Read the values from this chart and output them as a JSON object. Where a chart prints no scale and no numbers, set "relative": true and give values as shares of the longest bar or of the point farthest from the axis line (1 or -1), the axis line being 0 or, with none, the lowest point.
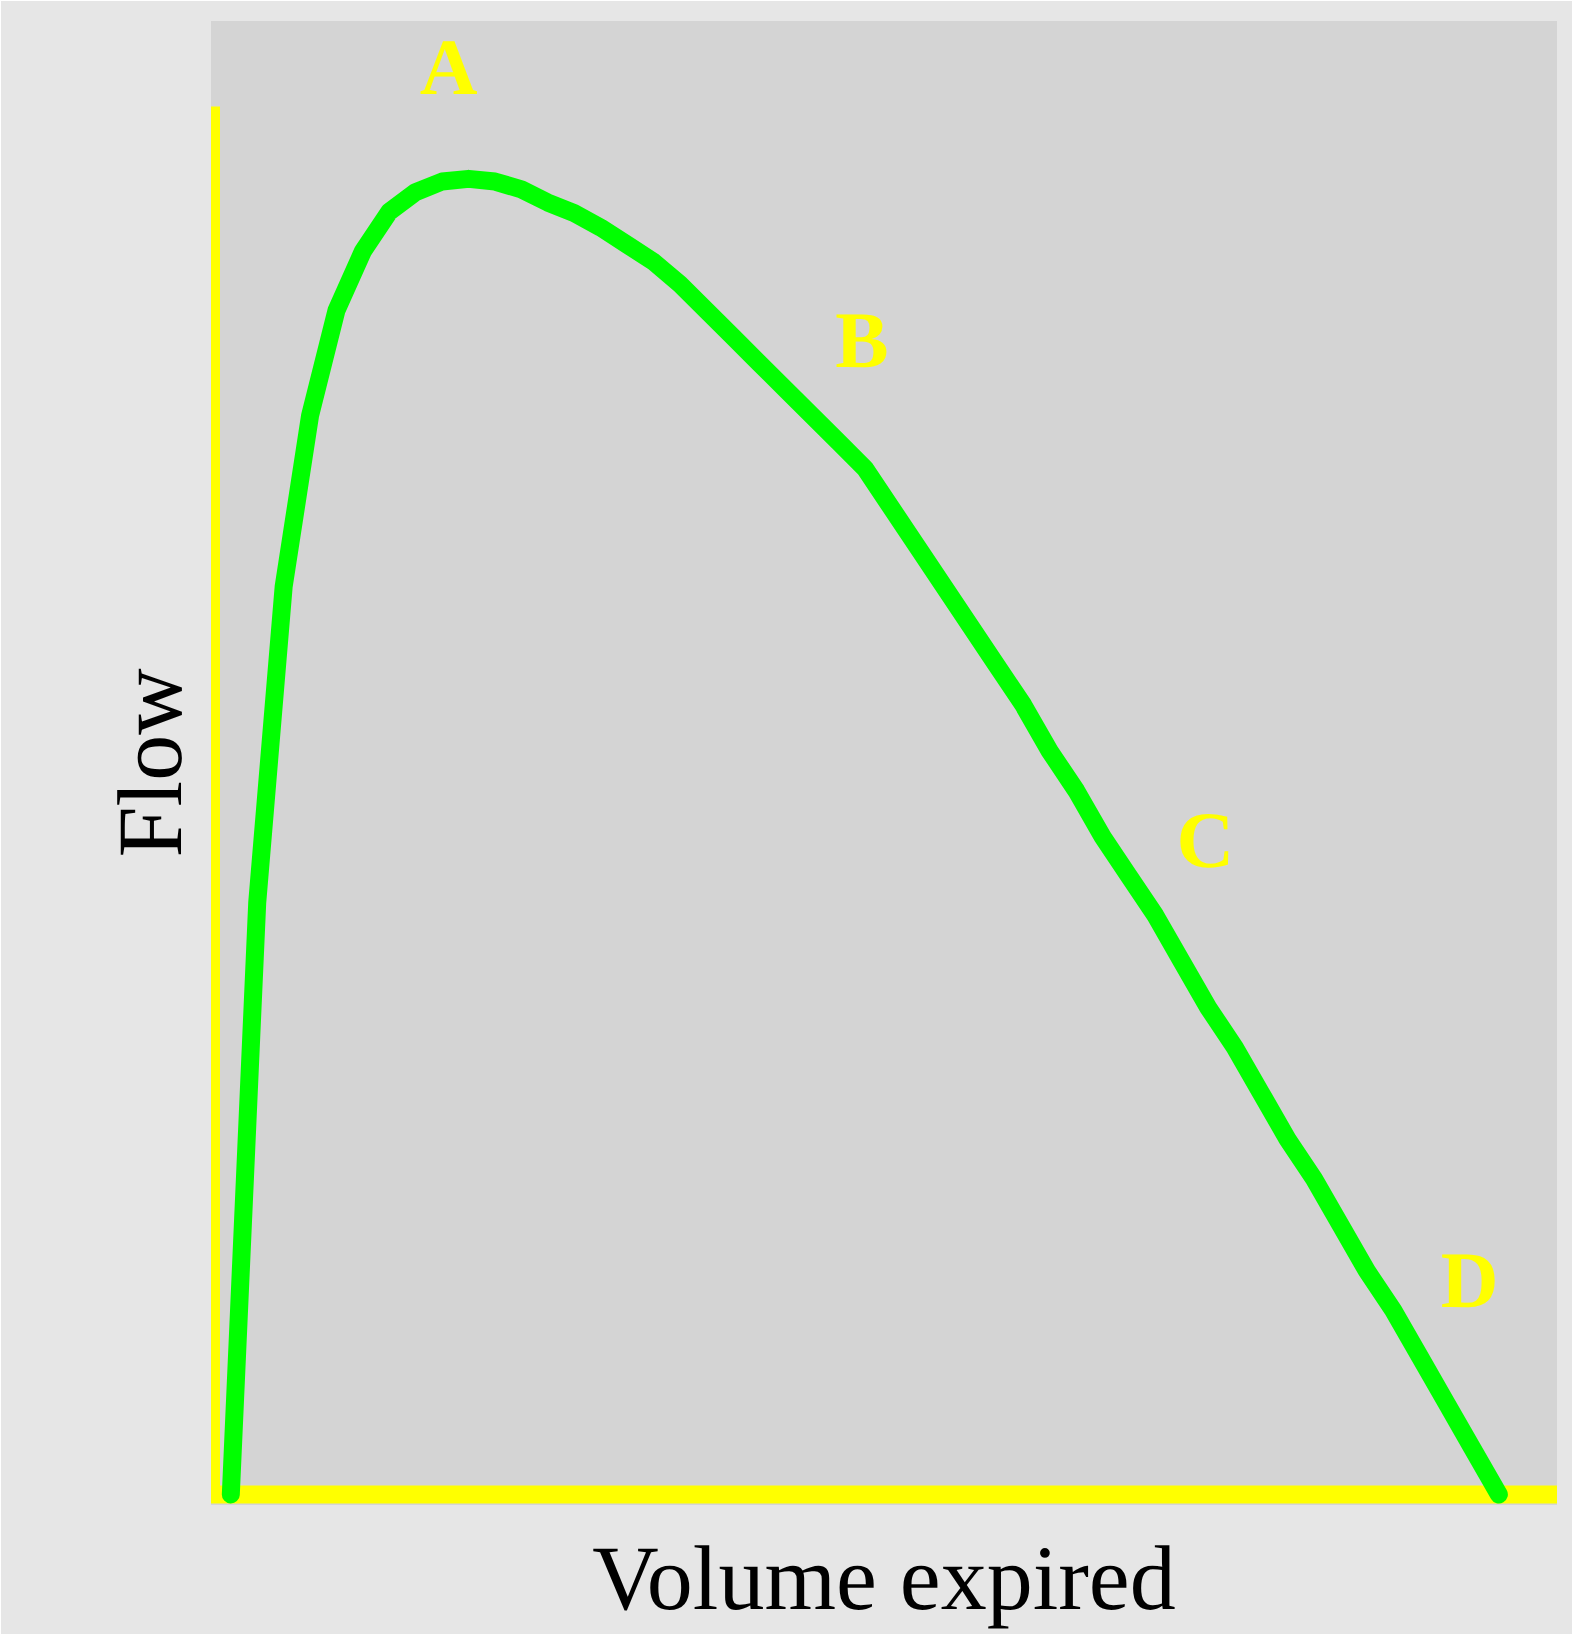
{
  "chart_data": {
    "type": "line",
    "relative": true,
    "xlabel": "Volume expired",
    "ylabel": "Flow",
    "line_style": "solid",
    "categories": [
      null,
      null,
      null,
      null,
      null,
      null,
      null,
      null,
      null,
      null,
      null,
      null,
      null,
      null,
      null,
      null,
      null,
      null,
      null,
      null,
      null,
      null,
      null,
      null,
      null,
      null,
      null,
      null,
      null,
      null,
      null,
      null,
      null,
      null,
      null,
      null,
      null,
      null,
      null,
      null,
      null,
      null,
      null,
      null,
      null,
      null,
      null,
      null,
      null
    ],
    "series": [
      {
        "color": "#00ff00",
        "values": [
          0,
          0.45,
          0.69,
          0.82,
          0.9,
          0.945,
          0.975,
          0.99,
          0.998,
          1.0,
          0.998,
          0.992,
          0.982,
          0.974,
          0.963,
          0.95,
          0.937,
          0.92,
          0.9,
          0.88,
          0.86,
          0.84,
          0.82,
          0.8,
          0.78,
          0.75,
          0.72,
          0.69,
          0.66,
          0.63,
          0.6,
          0.565,
          0.535,
          0.5,
          0.47,
          0.44,
          0.405,
          0.37,
          0.34,
          0.305,
          0.27,
          0.24,
          0.205,
          0.17,
          0.14,
          0.105,
          0.07,
          0.035,
          0
        ]
      }
    ],
    "annotations": [
      "A",
      "B",
      "C",
      "D"
    ]
  }
}
